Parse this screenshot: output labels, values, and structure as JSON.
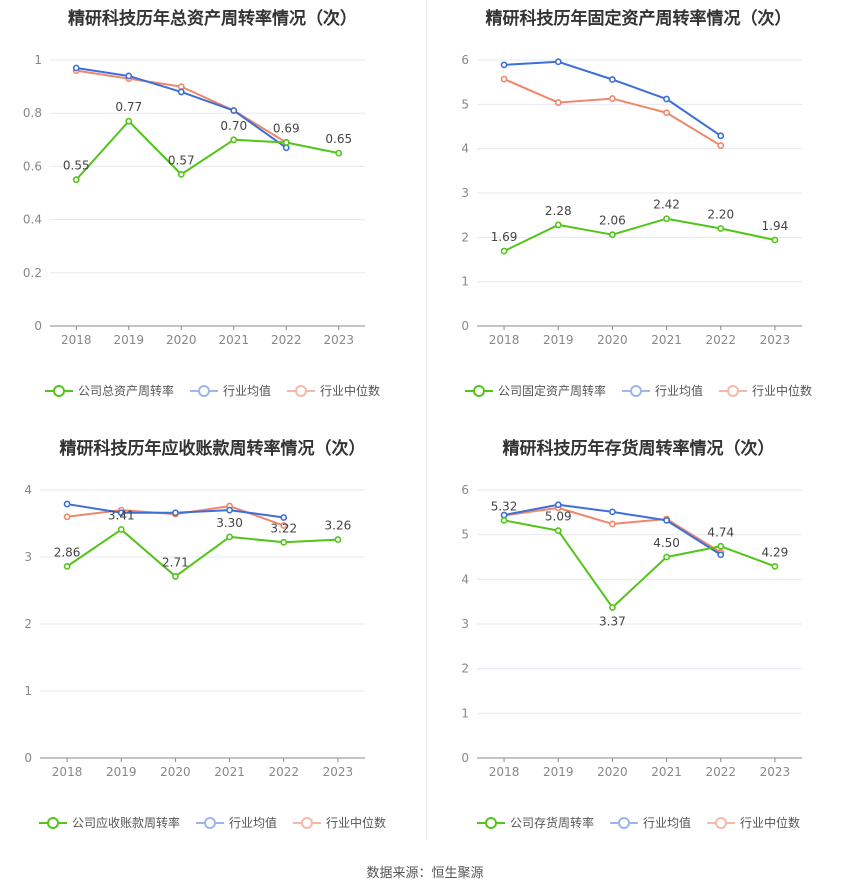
{
  "colors": {
    "company": "#52c41a",
    "average": "#3d6fd8",
    "median": "#f0866a"
  },
  "footer": {
    "source": "数据来源：恒生聚源"
  },
  "chart_data": [
    {
      "type": "line",
      "title": "精研科技历年总资产周转率情况（次）",
      "categories": [
        "2018",
        "2019",
        "2020",
        "2021",
        "2022",
        "2023"
      ],
      "ylim": [
        0,
        1
      ],
      "yticks": [
        "0",
        "0.2",
        "0.4",
        "0.6",
        "0.8",
        "1"
      ],
      "ytick_values": [
        0,
        0.2,
        0.4,
        0.6,
        0.8,
        1
      ],
      "grid": true,
      "legend_position": "bottom",
      "series": [
        {
          "name": "公司总资产周转率",
          "role": "company",
          "values": [
            0.55,
            0.77,
            0.57,
            0.7,
            0.69,
            0.65
          ],
          "labels": [
            "0.55",
            "0.77",
            "0.57",
            "0.70",
            "0.69",
            "0.65"
          ]
        },
        {
          "name": "行业均值",
          "role": "average",
          "values": [
            0.97,
            0.94,
            0.88,
            0.81,
            0.67,
            null
          ]
        },
        {
          "name": "行业中位数",
          "role": "median",
          "values": [
            0.96,
            0.93,
            0.9,
            0.81,
            0.69,
            null
          ]
        }
      ]
    },
    {
      "type": "line",
      "title": "精研科技历年固定资产周转率情况（次）",
      "categories": [
        "2018",
        "2019",
        "2020",
        "2021",
        "2022",
        "2023"
      ],
      "ylim": [
        0,
        6
      ],
      "yticks": [
        "0",
        "1",
        "2",
        "3",
        "4",
        "5",
        "6"
      ],
      "ytick_values": [
        0,
        1,
        2,
        3,
        4,
        5,
        6
      ],
      "grid": true,
      "legend_position": "bottom",
      "series": [
        {
          "name": "公司固定资产周转率",
          "role": "company",
          "values": [
            1.69,
            2.28,
            2.06,
            2.42,
            2.2,
            1.94
          ],
          "labels": [
            "1.69",
            "2.28",
            "2.06",
            "2.42",
            "2.20",
            "1.94"
          ]
        },
        {
          "name": "行业均值",
          "role": "average",
          "values": [
            5.89,
            5.96,
            5.56,
            5.12,
            4.29,
            null
          ]
        },
        {
          "name": "行业中位数",
          "role": "median",
          "values": [
            5.57,
            5.04,
            5.13,
            4.81,
            4.07,
            null
          ]
        }
      ]
    },
    {
      "type": "line",
      "title": "精研科技历年应收账款周转率情况（次）",
      "categories": [
        "2018",
        "2019",
        "2020",
        "2021",
        "2022",
        "2023"
      ],
      "ylim": [
        0,
        4
      ],
      "yticks": [
        "0",
        "1",
        "2",
        "3",
        "4"
      ],
      "ytick_values": [
        0,
        1,
        2,
        3,
        4
      ],
      "grid": true,
      "legend_position": "bottom",
      "series": [
        {
          "name": "公司应收账款周转率",
          "role": "company",
          "values": [
            2.86,
            3.41,
            2.71,
            3.3,
            3.22,
            3.26
          ],
          "labels": [
            "2.86",
            "3.41",
            "2.71",
            "3.30",
            "3.22",
            "3.26"
          ]
        },
        {
          "name": "行业均值",
          "role": "average",
          "values": [
            3.79,
            3.66,
            3.66,
            3.7,
            3.59,
            null
          ]
        },
        {
          "name": "行业中位数",
          "role": "median",
          "values": [
            3.6,
            3.7,
            3.64,
            3.76,
            3.47,
            null
          ]
        }
      ]
    },
    {
      "type": "line",
      "title": "精研科技历年存货周转率情况（次）",
      "categories": [
        "2018",
        "2019",
        "2020",
        "2021",
        "2022",
        "2023"
      ],
      "ylim": [
        0,
        6
      ],
      "yticks": [
        "0",
        "1",
        "2",
        "3",
        "4",
        "5",
        "6"
      ],
      "ytick_values": [
        0,
        1,
        2,
        3,
        4,
        5,
        6
      ],
      "grid": true,
      "legend_position": "bottom",
      "series": [
        {
          "name": "公司存货周转率",
          "role": "company",
          "values": [
            5.32,
            5.09,
            3.37,
            4.5,
            4.74,
            4.29
          ],
          "labels": [
            "5.32",
            "5.09",
            "3.37",
            "4.50",
            "4.74",
            "4.29"
          ]
        },
        {
          "name": "行业均值",
          "role": "average",
          "values": [
            5.44,
            5.67,
            5.51,
            5.32,
            4.55,
            null
          ]
        },
        {
          "name": "行业中位数",
          "role": "median",
          "values": [
            5.43,
            5.6,
            5.24,
            5.35,
            4.6,
            null
          ]
        }
      ]
    }
  ]
}
